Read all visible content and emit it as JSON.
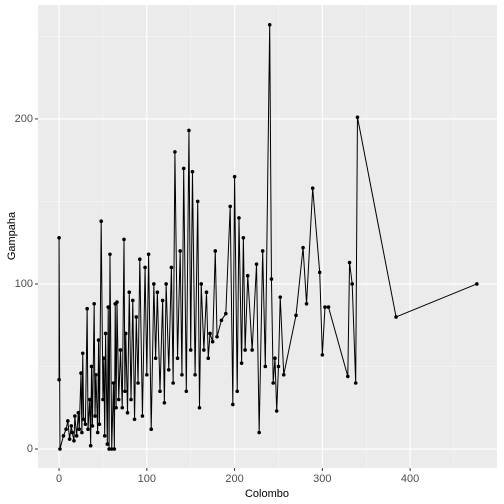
{
  "chart_data": {
    "type": "line",
    "x_label": "Colombo",
    "y_label": "Gampaha",
    "x": [
      0,
      0,
      1,
      5,
      8,
      10,
      12,
      14,
      15,
      17,
      18,
      20,
      22,
      23,
      25,
      26,
      27,
      28,
      30,
      32,
      33,
      35,
      36,
      37,
      38,
      40,
      41,
      42,
      44,
      45,
      46,
      48,
      50,
      51,
      52,
      53,
      55,
      56,
      57,
      58,
      60,
      62,
      63,
      64,
      65,
      66,
      68,
      70,
      72,
      74,
      75,
      76,
      78,
      80,
      82,
      84,
      86,
      88,
      90,
      92,
      95,
      98,
      100,
      102,
      105,
      108,
      110,
      112,
      115,
      118,
      120,
      122,
      125,
      128,
      130,
      132,
      135,
      138,
      140,
      142,
      145,
      148,
      150,
      152,
      155,
      158,
      160,
      162,
      165,
      168,
      170,
      172,
      175,
      178,
      180,
      185,
      190,
      195,
      198,
      200,
      203,
      205,
      208,
      210,
      212,
      215,
      220,
      225,
      228,
      232,
      235,
      240,
      242,
      244,
      246,
      248,
      250,
      252,
      256,
      270,
      278,
      282,
      289,
      297,
      300,
      303,
      307,
      329,
      331,
      334,
      338,
      340,
      384,
      476
    ],
    "values": [
      42,
      128,
      0,
      8,
      12,
      17,
      6,
      14,
      10,
      5,
      20,
      8,
      22,
      12,
      46,
      10,
      58,
      18,
      15,
      85,
      12,
      30,
      2,
      50,
      14,
      88,
      20,
      45,
      10,
      66,
      15,
      138,
      30,
      55,
      8,
      70,
      3,
      86,
      0,
      118,
      0,
      40,
      0,
      88,
      25,
      89,
      30,
      60,
      25,
      127,
      35,
      70,
      22,
      95,
      30,
      90,
      18,
      80,
      40,
      115,
      20,
      110,
      45,
      118,
      12,
      100,
      55,
      95,
      35,
      90,
      28,
      100,
      48,
      110,
      40,
      180,
      55,
      120,
      45,
      170,
      35,
      193,
      60,
      168,
      45,
      150,
      25,
      100,
      60,
      95,
      55,
      70,
      65,
      120,
      68,
      78,
      82,
      147,
      27,
      165,
      35,
      140,
      52,
      128,
      60,
      105,
      60,
      112,
      10,
      120,
      50,
      257,
      103,
      40,
      55,
      23,
      50,
      92,
      45,
      81,
      122,
      88,
      158,
      107,
      57,
      86,
      86,
      44,
      113,
      100,
      40,
      201,
      80,
      100
    ],
    "color": "#000000",
    "xlim": [
      -24,
      499
    ],
    "ylim": [
      -11.5,
      269
    ],
    "xticks": [
      0,
      100,
      200,
      300,
      400
    ],
    "yticks": [
      0,
      100,
      200
    ],
    "grid": true
  }
}
